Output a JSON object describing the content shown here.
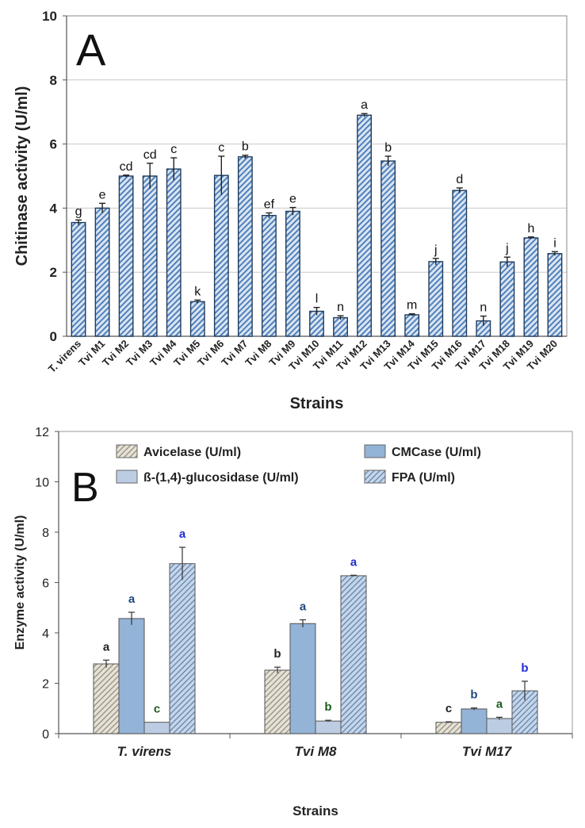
{
  "chart_data": [
    {
      "type": "bar",
      "panel_label": "A",
      "xlabel": "Strains",
      "ylabel": "Chitinase activity (U/ml)",
      "ylim": [
        0,
        10
      ],
      "yticks": [
        0,
        2,
        4,
        6,
        8,
        10
      ],
      "grid": true,
      "categories": [
        "T. virens",
        "Tvi M1",
        "Tvi M2",
        "Tvi M3",
        "Tvi M4",
        "Tvi M5",
        "Tvi M6",
        "Tvi M7",
        "Tvi M8",
        "Tvi M9",
        "Tvi M10",
        "Tvi M11",
        "Tvi M12",
        "Tvi M13",
        "Tvi M14",
        "Tvi M15",
        "Tvi M16",
        "Tvi M17",
        "Tvi M18",
        "Tvi M19",
        "Tvi M20"
      ],
      "values": [
        3.55,
        4.0,
        5.0,
        5.0,
        5.22,
        1.08,
        5.02,
        5.6,
        3.77,
        3.9,
        0.78,
        0.58,
        6.9,
        5.47,
        0.67,
        2.33,
        4.55,
        0.48,
        2.32,
        3.07,
        2.58
      ],
      "errors": [
        0.08,
        0.15,
        0.03,
        0.4,
        0.35,
        0.05,
        0.6,
        0.05,
        0.08,
        0.12,
        0.12,
        0.06,
        0.05,
        0.15,
        0.03,
        0.1,
        0.08,
        0.15,
        0.15,
        0.03,
        0.06
      ],
      "letters": [
        "g",
        "e",
        "cd",
        "cd",
        "c",
        "k",
        "c",
        "b",
        "ef",
        "e",
        "l",
        "n",
        "a",
        "b",
        "m",
        "j",
        "d",
        "n",
        "j",
        "h",
        "i"
      ],
      "colors": {
        "bar_fill": "#dbe5f1",
        "bar_hatch": "#4f81bd",
        "bar_stroke": "#1f3b5e",
        "grid": "#c8c8c8"
      }
    },
    {
      "type": "bar",
      "panel_label": "B",
      "xlabel": "Strains",
      "ylabel": "Enzyme activity (U/ml)",
      "ylim": [
        0,
        12
      ],
      "yticks": [
        0,
        2,
        4,
        6,
        8,
        10,
        12
      ],
      "grid": false,
      "legend_position": "top",
      "categories": [
        "T. virens",
        "Tvi M8",
        "Tvi M17"
      ],
      "series": [
        {
          "name": "Avicelase  (U/ml)",
          "values": [
            2.77,
            2.52,
            0.45
          ],
          "errors": [
            0.15,
            0.12,
            0.02
          ],
          "letters": [
            "a",
            "b",
            "c"
          ],
          "letter_color": "#222222",
          "fill": "#e6e2d8",
          "hatch": "#9a9484"
        },
        {
          "name": "CMCase  (U/ml)",
          "values": [
            4.57,
            4.37,
            0.98
          ],
          "errors": [
            0.25,
            0.15,
            0.04
          ],
          "letters": [
            "a",
            "a",
            "b"
          ],
          "letter_color": "#1f497d",
          "fill": "#93b3d7",
          "hatch": null
        },
        {
          "name": "ß-(1,4)-glucosidase  (U/ml)",
          "values": [
            0.45,
            0.5,
            0.6
          ],
          "errors": [
            0.0,
            0.03,
            0.05
          ],
          "letters": [
            "c",
            "b",
            "a"
          ],
          "letter_color": "#1a5c1a",
          "fill": "#bccde3",
          "hatch": null
        },
        {
          "name": "FPA  (U/ml)",
          "values": [
            6.75,
            6.27,
            1.7
          ],
          "errors": [
            0.65,
            0.02,
            0.38
          ],
          "letters": [
            "a",
            "a",
            "b"
          ],
          "letter_color": "#1f2ed0",
          "fill": "#c6d6ea",
          "hatch": "#6a8ab0"
        }
      ]
    }
  ]
}
